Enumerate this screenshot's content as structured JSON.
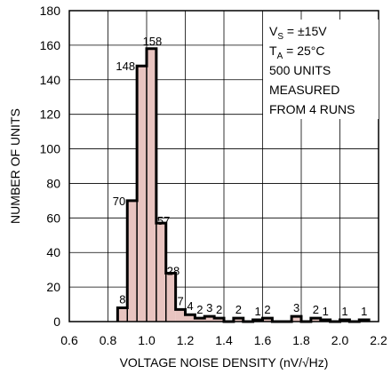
{
  "chart_data": {
    "type": "bar",
    "xlabel": "VOLTAGE NOISE DENSITY (nV/√Hz)",
    "ylabel": "NUMBER OF UNITS",
    "xlim": [
      0.6,
      2.2
    ],
    "ylim": [
      0,
      180
    ],
    "xticks": [
      "0.6",
      "0.8",
      "1.0",
      "1.2",
      "1.4",
      "1.6",
      "1.8",
      "2.0",
      "2.2"
    ],
    "yticks": [
      "0",
      "20",
      "40",
      "60",
      "80",
      "100",
      "120",
      "140",
      "160",
      "180"
    ],
    "bin_width": 0.05,
    "bins": [
      {
        "x": 0.85,
        "value": 8,
        "label": "8"
      },
      {
        "x": 0.9,
        "value": 70,
        "label": "70"
      },
      {
        "x": 0.95,
        "value": 148,
        "label": "148"
      },
      {
        "x": 1.0,
        "value": 158,
        "label": "158"
      },
      {
        "x": 1.05,
        "value": 57,
        "label": "57"
      },
      {
        "x": 1.1,
        "value": 28,
        "label": "28"
      },
      {
        "x": 1.15,
        "value": 7,
        "label": "7"
      },
      {
        "x": 1.2,
        "value": 4,
        "label": "4"
      },
      {
        "x": 1.25,
        "value": 2,
        "label": "2"
      },
      {
        "x": 1.3,
        "value": 3,
        "label": "3"
      },
      {
        "x": 1.35,
        "value": 2,
        "label": "2"
      },
      {
        "x": 1.4,
        "value": 0,
        "label": ""
      },
      {
        "x": 1.45,
        "value": 2,
        "label": "2"
      },
      {
        "x": 1.5,
        "value": 0,
        "label": ""
      },
      {
        "x": 1.55,
        "value": 1,
        "label": "1"
      },
      {
        "x": 1.6,
        "value": 2,
        "label": "2"
      },
      {
        "x": 1.65,
        "value": 0,
        "label": ""
      },
      {
        "x": 1.7,
        "value": 0,
        "label": ""
      },
      {
        "x": 1.75,
        "value": 3,
        "label": "3"
      },
      {
        "x": 1.8,
        "value": 0,
        "label": ""
      },
      {
        "x": 1.85,
        "value": 2,
        "label": "2"
      },
      {
        "x": 1.9,
        "value": 1,
        "label": "1"
      },
      {
        "x": 1.95,
        "value": 0,
        "label": ""
      },
      {
        "x": 2.0,
        "value": 1,
        "label": "1"
      },
      {
        "x": 2.05,
        "value": 0,
        "label": ""
      },
      {
        "x": 2.1,
        "value": 1,
        "label": "1"
      }
    ],
    "annotation": {
      "vs_main": "V",
      "vs_sub": "S",
      "vs_rest": " = ±15V",
      "ta_main": "T",
      "ta_sub": "A",
      "ta_rest": " = 25°C",
      "line3": "500 UNITS",
      "line4": "MEASURED",
      "line5": "FROM 4 RUNS"
    },
    "grid": true,
    "fill_color": "#e8c4c0",
    "edge_color": "#000000"
  }
}
